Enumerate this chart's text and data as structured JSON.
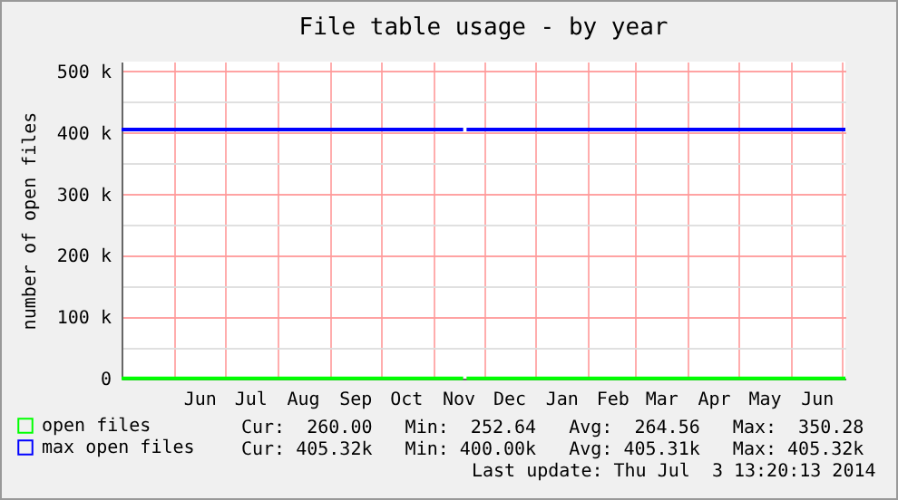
{
  "chart_data": {
    "type": "line",
    "title": "File table usage - by year",
    "ylabel": "number of open files",
    "x": [
      "2013-05-01",
      "2013-11-19",
      "2013-11-20",
      "2013-11-21",
      "2014-07-03"
    ],
    "series": [
      {
        "name": "open files",
        "color": "#00ff00",
        "values": [
          260,
          260,
          null,
          260,
          260
        ]
      },
      {
        "name": "max open files",
        "color": "#0000ff",
        "values": [
          405320,
          405320,
          null,
          405320,
          405320
        ]
      }
    ],
    "xlim": [
      "2013-05-01",
      "2014-07-03"
    ],
    "xticks": [
      {
        "value": "2013-06-01",
        "label": null
      },
      {
        "value": "2013-07-01",
        "label": null
      },
      {
        "value": "2013-08-01",
        "label": null
      },
      {
        "value": "2013-09-01",
        "label": null
      },
      {
        "value": "2013-10-01",
        "label": null
      },
      {
        "value": "2013-11-01",
        "label": null
      },
      {
        "value": "2013-12-01",
        "label": null
      },
      {
        "value": "2014-01-01",
        "label": null
      },
      {
        "value": "2014-02-01",
        "label": null
      },
      {
        "value": "2014-03-01",
        "label": null
      },
      {
        "value": "2014-04-01",
        "label": null
      },
      {
        "value": "2014-05-01",
        "label": null
      },
      {
        "value": "2014-06-01",
        "label": null
      },
      {
        "value": "2014-07-01",
        "label": null
      },
      {
        "value": "2013-06-16",
        "label": "Jun"
      },
      {
        "value": "2013-07-16",
        "label": "Jul"
      },
      {
        "value": "2013-08-16",
        "label": "Aug"
      },
      {
        "value": "2013-09-16",
        "label": "Sep"
      },
      {
        "value": "2013-10-16",
        "label": "Oct"
      },
      {
        "value": "2013-11-16",
        "label": "Nov"
      },
      {
        "value": "2013-12-16",
        "label": "Dec"
      },
      {
        "value": "2014-01-16",
        "label": "Jan"
      },
      {
        "value": "2014-02-15",
        "label": "Feb"
      },
      {
        "value": "2014-03-16",
        "label": "Mar"
      },
      {
        "value": "2014-04-16",
        "label": "Apr"
      },
      {
        "value": "2014-05-16",
        "label": "May"
      },
      {
        "value": "2014-06-16",
        "label": "Jun"
      }
    ],
    "ylim": [
      0,
      516000
    ],
    "yticks": [
      {
        "value": 0,
        "label": "0"
      },
      {
        "value": 50000,
        "label": null
      },
      {
        "value": 100000,
        "label": "100 k"
      },
      {
        "value": 150000,
        "label": null
      },
      {
        "value": 200000,
        "label": "200 k"
      },
      {
        "value": 250000,
        "label": null
      },
      {
        "value": 300000,
        "label": "300 k"
      },
      {
        "value": 350000,
        "label": null
      },
      {
        "value": 400000,
        "label": "400 k"
      },
      {
        "value": 450000,
        "label": null
      },
      {
        "value": 500000,
        "label": "500 k"
      }
    ],
    "grid": true,
    "legend": "bottom left",
    "annotations": [
      "Cur:  260.00   Min:  252.64   Avg:  264.56   Max:  350.28",
      "Cur: 405.32k   Min: 400.00k   Avg: 405.31k   Max: 405.32k",
      "Last update: Thu Jul  3 13:20:13 2014"
    ]
  }
}
